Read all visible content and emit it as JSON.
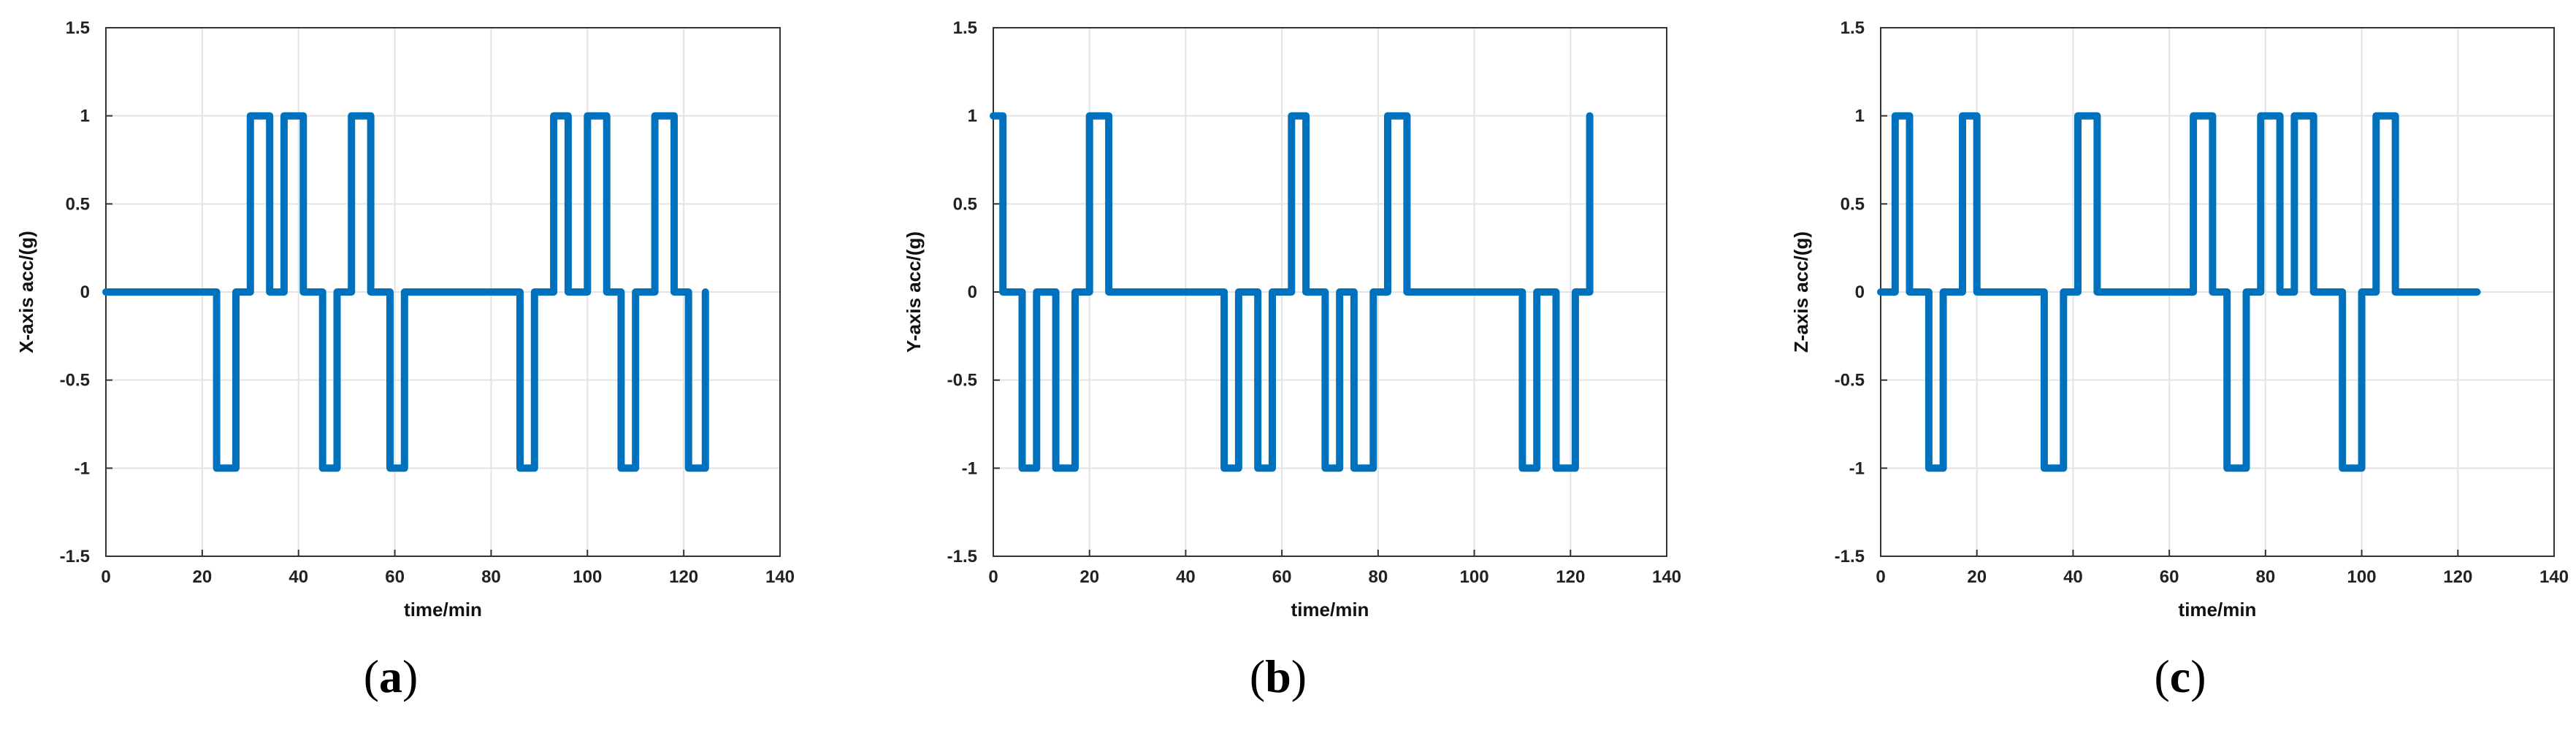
{
  "chart_data": [
    {
      "type": "line",
      "panel_label": "a",
      "xlabel": "time/min",
      "ylabel": "X-axis acc/(g)",
      "xlim": [
        0,
        140
      ],
      "ylim": [
        -1.5,
        1.5
      ],
      "xticks": [
        0,
        20,
        40,
        60,
        80,
        100,
        120,
        140
      ],
      "yticks": [
        -1.5,
        -1,
        -0.5,
        0,
        0.5,
        1,
        1.5
      ],
      "ytick_labels": [
        "-1.5",
        "-1",
        "-0.5",
        "0",
        "0.5",
        "1",
        "1.5"
      ],
      "grid": true,
      "color": "#0072BD",
      "series": [
        {
          "x": [
            0,
            23,
            23,
            27,
            27,
            30,
            30,
            34,
            34,
            37,
            37,
            41,
            41,
            45,
            45,
            48,
            48,
            51,
            51,
            55,
            55,
            59,
            59,
            62,
            62,
            86,
            86,
            89,
            89,
            93,
            93,
            96,
            96,
            100,
            100,
            104,
            104,
            107,
            107,
            110,
            110,
            114,
            114,
            118,
            118,
            121,
            121,
            124.5,
            124.5
          ],
          "y": [
            0,
            0,
            -1,
            -1,
            0,
            0,
            1,
            1,
            0,
            0,
            1,
            1,
            0,
            0,
            -1,
            -1,
            0,
            0,
            1,
            1,
            0,
            0,
            -1,
            -1,
            0,
            0,
            -1,
            -1,
            0,
            0,
            1,
            1,
            0,
            0,
            1,
            1,
            0,
            0,
            -1,
            -1,
            0,
            0,
            1,
            1,
            0,
            0,
            -1,
            -1,
            0
          ]
        }
      ]
    },
    {
      "type": "line",
      "panel_label": "b",
      "xlabel": "time/min",
      "ylabel": "Y-axis acc/(g)",
      "xlim": [
        0,
        140
      ],
      "ylim": [
        -1.5,
        1.5
      ],
      "xticks": [
        0,
        20,
        40,
        60,
        80,
        100,
        120,
        140
      ],
      "yticks": [
        -1.5,
        -1,
        -0.5,
        0,
        0.5,
        1,
        1.5
      ],
      "ytick_labels": [
        "-1.5",
        "-1",
        "-0.5",
        "0",
        "0.5",
        "1",
        "1.5"
      ],
      "grid": true,
      "color": "#0072BD",
      "series": [
        {
          "x": [
            0,
            2,
            2,
            6,
            6,
            9,
            9,
            13,
            13,
            17,
            17,
            20,
            20,
            24,
            24,
            48,
            48,
            51,
            51,
            55,
            55,
            58,
            58,
            62,
            62,
            65,
            65,
            69,
            69,
            72,
            72,
            75,
            75,
            79,
            79,
            82,
            82,
            86,
            86,
            110,
            110,
            113,
            113,
            117,
            117,
            121,
            121,
            124,
            124
          ],
          "y": [
            1,
            1,
            0,
            0,
            -1,
            -1,
            0,
            0,
            -1,
            -1,
            0,
            0,
            1,
            1,
            0,
            0,
            -1,
            -1,
            0,
            0,
            -1,
            -1,
            0,
            0,
            1,
            1,
            0,
            0,
            -1,
            -1,
            0,
            0,
            -1,
            -1,
            0,
            0,
            1,
            1,
            0,
            0,
            -1,
            -1,
            0,
            0,
            -1,
            -1,
            0,
            0,
            1
          ]
        }
      ]
    },
    {
      "type": "line",
      "panel_label": "c",
      "xlabel": "time/min",
      "ylabel": "Z-axis acc/(g)",
      "xlim": [
        0,
        140
      ],
      "ylim": [
        -1.5,
        1.5
      ],
      "xticks": [
        0,
        20,
        40,
        60,
        80,
        100,
        120,
        140
      ],
      "yticks": [
        -1.5,
        -1,
        -0.5,
        0,
        0.5,
        1,
        1.5
      ],
      "ytick_labels": [
        "-1.5",
        "-1",
        "-0.5",
        "0",
        "0.5",
        "1",
        "1.5"
      ],
      "grid": true,
      "color": "#0072BD",
      "series": [
        {
          "x": [
            0,
            3,
            3,
            6,
            6,
            10,
            10,
            13,
            13,
            17,
            17,
            20,
            20,
            24,
            24,
            34,
            34,
            38,
            38,
            41,
            41,
            45,
            45,
            65,
            65,
            69,
            69,
            72,
            72,
            76,
            76,
            79,
            79,
            83,
            83,
            86,
            86,
            90,
            90,
            93,
            93,
            96,
            96,
            100,
            100,
            103,
            103,
            107,
            107,
            124
          ],
          "y": [
            0,
            0,
            1,
            1,
            0,
            0,
            -1,
            -1,
            0,
            0,
            1,
            1,
            0,
            0,
            0,
            0,
            -1,
            -1,
            0,
            0,
            1,
            1,
            0,
            0,
            1,
            1,
            0,
            0,
            -1,
            -1,
            0,
            0,
            1,
            1,
            0,
            0,
            1,
            1,
            0,
            0,
            0,
            0,
            -1,
            -1,
            0,
            0,
            1,
            1,
            0,
            0
          ]
        }
      ]
    }
  ]
}
